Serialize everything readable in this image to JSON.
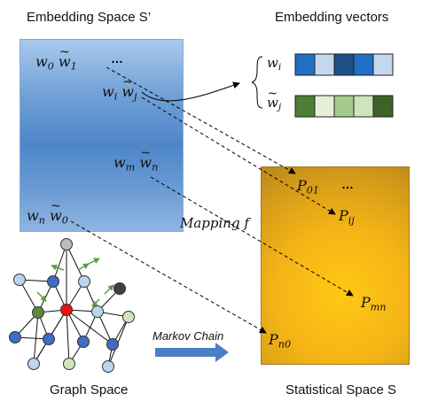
{
  "titles": {
    "embedding_space": "Embedding Space S’",
    "embedding_vectors": "Embedding vectors",
    "graph_space": "Graph Space",
    "statistical_space": "Statistical Space S"
  },
  "embedding_labels": {
    "w0": "w",
    "w0_sub": "0",
    "w1": "w",
    "w1_sub": "1",
    "dots": "…",
    "wi": "w",
    "wi_sub": "i",
    "wj": "w",
    "wj_sub": "j",
    "wm": "w",
    "wm_sub": "m",
    "wn_t": "w",
    "wn_t_sub": "n",
    "wn": "w",
    "wn_sub": "n",
    "w0_t": "w",
    "w0_t_sub": "0"
  },
  "vector_labels": {
    "wi": "w",
    "wi_sub": "i",
    "wj": "w",
    "wj_sub": "j"
  },
  "vectors": {
    "wi_colors": [
      "#1f6fc7",
      "#c3d8ef",
      "#1d4f86",
      "#1f6fc7",
      "#c3d8ef"
    ],
    "wj_colors": [
      "#4e7f34",
      "#e6f0d9",
      "#a6c98f",
      "#cfe3bd",
      "#3d6427"
    ]
  },
  "stat_labels": {
    "p01": "P",
    "p01_sub": "01",
    "dots": "…",
    "pij": "P",
    "pij_sub": "ij",
    "pmn": "P",
    "pmn_sub": "mn",
    "pn0": "P",
    "pn0_sub": "n0"
  },
  "mapping_label": "Mapping f",
  "markov_label": "Markov Chain",
  "colors": {
    "node_blue": "#3f6cc4",
    "node_lightblue": "#bcd5ef",
    "node_green": "#5d8a3a",
    "node_lightgreen": "#cfe6bb",
    "node_red": "#ee1111",
    "node_gray": "#bdbdbd",
    "node_dark": "#404040",
    "arrow_green": "#5aa03c",
    "markov_arrow": "#4a7fc6"
  }
}
